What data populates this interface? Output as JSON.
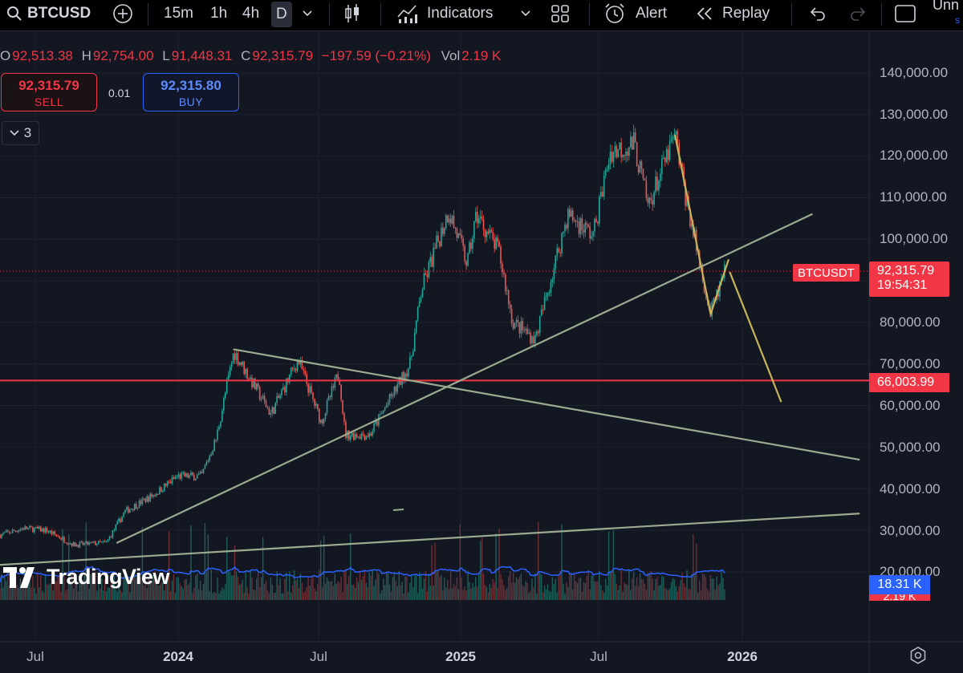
{
  "toolbar": {
    "symbol": "BTCUSD",
    "intervals": [
      "15m",
      "1h",
      "4h",
      "D"
    ],
    "active_interval": "D",
    "indicators_label": "Indicators",
    "alert_label": "Alert",
    "replay_label": "Replay",
    "account_label": "Unn",
    "account_sub": "s"
  },
  "ohlc": {
    "o_label": "O",
    "o": "92,513.38",
    "h_label": "H",
    "h": "92,754.00",
    "l_label": "L",
    "l": "91,448.31",
    "c_label": "C",
    "c": "92,315.79",
    "change": "−197.59 (−0.21%)",
    "vol_label": "Vol",
    "vol": "2.19 K"
  },
  "trade": {
    "sell_price": "92,315.79",
    "sell_label": "SELL",
    "spread": "0.01",
    "buy_price": "92,315.80",
    "buy_label": "BUY"
  },
  "indicators_collapsed": {
    "count": "3"
  },
  "price_axis": [
    "140,000.00",
    "130,000.00",
    "120,000.00",
    "110,000.00",
    "100,000.00",
    "80,000.00",
    "70,000.00",
    "60,000.00",
    "50,000.00",
    "40,000.00",
    "30,000.00",
    "20,000.00"
  ],
  "time_axis": [
    {
      "label": "Jul",
      "bold": false
    },
    {
      "label": "2024",
      "bold": true
    },
    {
      "label": "Jul",
      "bold": false
    },
    {
      "label": "2025",
      "bold": true
    },
    {
      "label": "Jul",
      "bold": false
    },
    {
      "label": "2026",
      "bold": true
    }
  ],
  "last_price_tag": {
    "symbol": "BTCUSDT",
    "price": "92,315.79",
    "countdown": "19:54:31"
  },
  "level_tag": {
    "price": "66,003.99"
  },
  "volume_tag": {
    "value": "18.31 K",
    "value2": "2.19 K"
  },
  "watermark": "TradingView",
  "colors": {
    "bg": "#131722",
    "up": "#26a69a",
    "down": "#ef5350",
    "level": "#f23645",
    "trend": "#9bab8f",
    "projection": "#c9b458",
    "volume_ma": "#2962ff"
  },
  "chart_data": {
    "type": "candlestick",
    "symbol": "BTCUSD",
    "interval": "D",
    "ylim": [
      15000,
      145000
    ],
    "x_range": [
      "2023-05",
      "2026-06"
    ],
    "series_close": [
      {
        "t": "2023-05-01",
        "v": 28000
      },
      {
        "t": "2023-06-15",
        "v": 30500
      },
      {
        "t": "2023-07-15",
        "v": 30000
      },
      {
        "t": "2023-08-20",
        "v": 26500
      },
      {
        "t": "2023-10-01",
        "v": 27000
      },
      {
        "t": "2023-10-25",
        "v": 34500
      },
      {
        "t": "2023-12-01",
        "v": 38500
      },
      {
        "t": "2024-01-01",
        "v": 43000
      },
      {
        "t": "2024-02-01",
        "v": 43000
      },
      {
        "t": "2024-02-20",
        "v": 52000
      },
      {
        "t": "2024-03-14",
        "v": 73000
      },
      {
        "t": "2024-05-01",
        "v": 58000
      },
      {
        "t": "2024-06-05",
        "v": 71000
      },
      {
        "t": "2024-07-05",
        "v": 56000
      },
      {
        "t": "2024-07-28",
        "v": 68000
      },
      {
        "t": "2024-08-05",
        "v": 53000
      },
      {
        "t": "2024-09-06",
        "v": 53000
      },
      {
        "t": "2024-10-28",
        "v": 70000
      },
      {
        "t": "2024-11-12",
        "v": 88000
      },
      {
        "t": "2024-12-17",
        "v": 107000
      },
      {
        "t": "2025-01-10",
        "v": 94000
      },
      {
        "t": "2025-01-22",
        "v": 106000
      },
      {
        "t": "2025-02-20",
        "v": 97000
      },
      {
        "t": "2025-03-10",
        "v": 80000
      },
      {
        "t": "2025-04-08",
        "v": 76000
      },
      {
        "t": "2025-05-20",
        "v": 106000
      },
      {
        "t": "2025-06-22",
        "v": 101000
      },
      {
        "t": "2025-07-14",
        "v": 121000
      },
      {
        "t": "2025-08-14",
        "v": 123000
      },
      {
        "t": "2025-09-01",
        "v": 108000
      },
      {
        "t": "2025-10-06",
        "v": 125000
      },
      {
        "t": "2025-10-20",
        "v": 110000
      },
      {
        "t": "2025-11-21",
        "v": 82000
      },
      {
        "t": "2025-12-10",
        "v": 92315
      }
    ],
    "horizontal_level": 66003.99,
    "last_price": 92315.79,
    "drawings": [
      {
        "name": "support-trendline",
        "type": "line",
        "points": [
          {
            "t": "2023-10-15",
            "v": 27000
          },
          {
            "t": "2026-04-01",
            "v": 106000
          }
        ]
      },
      {
        "name": "descending-resistance",
        "type": "line",
        "points": [
          {
            "t": "2024-03-14",
            "v": 73500
          },
          {
            "t": "2026-06-01",
            "v": 47000
          }
        ]
      },
      {
        "name": "long-term-support",
        "type": "line",
        "points": [
          {
            "t": "2023-05-01",
            "v": 21500
          },
          {
            "t": "2026-06-01",
            "v": 34000
          }
        ]
      },
      {
        "name": "projection-down",
        "type": "line",
        "points": [
          {
            "t": "2025-10-06",
            "v": 125000
          },
          {
            "t": "2025-11-21",
            "v": 82000
          }
        ]
      },
      {
        "name": "projection-up",
        "type": "line",
        "points": [
          {
            "t": "2025-11-21",
            "v": 82000
          },
          {
            "t": "2025-12-14",
            "v": 95000
          }
        ]
      },
      {
        "name": "projection-target",
        "type": "line",
        "points": [
          {
            "t": "2025-12-16",
            "v": 92000
          },
          {
            "t": "2026-02-20",
            "v": 61000
          }
        ]
      }
    ]
  }
}
